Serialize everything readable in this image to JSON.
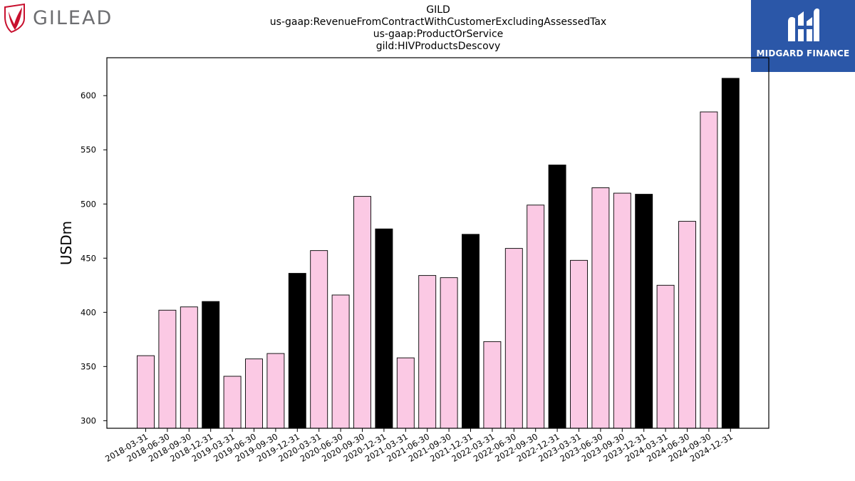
{
  "brand_left": {
    "name": "GILEAD",
    "icon": "gilead-logo-icon",
    "color": "#c8102e"
  },
  "brand_right": {
    "name": "MIDGARD FINANCE",
    "icon": "midgard-logo-icon",
    "color": "#2b57a8"
  },
  "chart_data": {
    "type": "bar",
    "title_lines": [
      "GILD",
      "us-gaap:RevenueFromContractWithCustomerExcludingAssessedTax",
      "us-gaap:ProductOrService",
      "gild:HIVProductsDescovy"
    ],
    "xlabel": "",
    "ylabel": "USDm",
    "ylim": [
      293,
      635
    ],
    "yticks": [
      300,
      350,
      400,
      450,
      500,
      550,
      600
    ],
    "grid": false,
    "legend": "none",
    "colors": {
      "quarter": "#fbc9e4",
      "year_end": "#000000",
      "edge": "#000000"
    },
    "categories": [
      "2018-03-31",
      "2018-06-30",
      "2018-09-30",
      "2018-12-31",
      "2019-03-31",
      "2019-06-30",
      "2019-09-30",
      "2019-12-31",
      "2020-03-31",
      "2020-06-30",
      "2020-09-30",
      "2020-12-31",
      "2021-03-31",
      "2021-06-30",
      "2021-09-30",
      "2021-12-31",
      "2022-03-31",
      "2022-06-30",
      "2022-09-30",
      "2022-12-31",
      "2023-03-31",
      "2023-06-30",
      "2023-09-30",
      "2023-12-31",
      "2024-03-31",
      "2024-06-30",
      "2024-09-30",
      "2024-12-31"
    ],
    "values": [
      360,
      402,
      405,
      410,
      341,
      357,
      362,
      436,
      457,
      416,
      507,
      477,
      358,
      434,
      432,
      472,
      373,
      459,
      499,
      536,
      448,
      515,
      510,
      509,
      425,
      484,
      585,
      616
    ]
  }
}
